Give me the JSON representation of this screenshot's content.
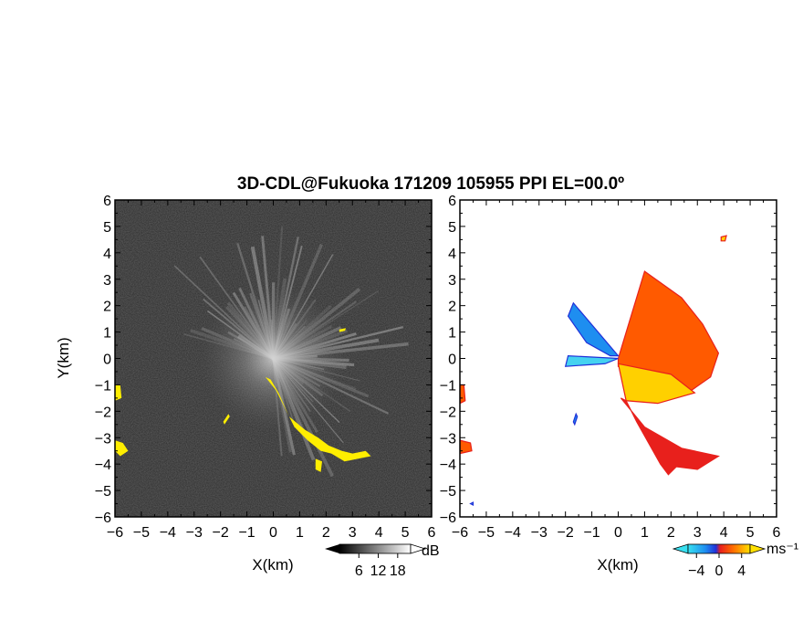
{
  "chart_data": [
    {
      "type": "heatmap",
      "panel": "left",
      "title": "3D-CDL@Fukuoka 171209 105955 PPI EL=00.0º",
      "xlabel": "X(km)",
      "ylabel": "Y(km)",
      "xlim": [
        -6,
        6
      ],
      "ylim": [
        -6,
        6
      ],
      "xticks": [
        "−6",
        "−5",
        "−4",
        "−3",
        "−2",
        "−1",
        "0",
        "1",
        "2",
        "3",
        "4",
        "5",
        "6"
      ],
      "yticks": [
        "6",
        "5",
        "4",
        "3",
        "2",
        "1",
        "0",
        "−1",
        "−2",
        "−3",
        "−4",
        "−5",
        "−6"
      ],
      "colorbar": {
        "unit": "dB",
        "ticks": [
          "6",
          "12",
          "18"
        ],
        "range": [
          0,
          22
        ]
      },
      "highlight_color": "#ffee00",
      "background_color": "#2a2a2a",
      "highlight_regions": [
        {
          "points": [
            [
              -0.3,
              -0.7
            ],
            [
              0.1,
              -1.2
            ],
            [
              0.8,
              -2.6
            ],
            [
              1.3,
              -3.1
            ],
            [
              1.8,
              -3.5
            ],
            [
              2.2,
              -3.6
            ],
            [
              2.7,
              -3.9
            ],
            [
              3.2,
              -3.8
            ],
            [
              3.7,
              -3.7
            ],
            [
              3.5,
              -3.5
            ],
            [
              3.0,
              -3.6
            ],
            [
              2.6,
              -3.5
            ],
            [
              2.1,
              -3.3
            ],
            [
              1.7,
              -3.0
            ],
            [
              1.2,
              -2.7
            ],
            [
              0.6,
              -2.2
            ],
            [
              0.2,
              -1.3
            ],
            [
              -0.1,
              -0.8
            ]
          ]
        },
        {
          "points": [
            [
              -6.0,
              -1.0
            ],
            [
              -5.8,
              -1.0
            ],
            [
              -5.75,
              -1.5
            ],
            [
              -6.0,
              -1.6
            ]
          ]
        },
        {
          "points": [
            [
              -6.0,
              -3.1
            ],
            [
              -5.7,
              -3.2
            ],
            [
              -5.5,
              -3.5
            ],
            [
              -5.8,
              -3.7
            ],
            [
              -6.0,
              -3.5
            ]
          ]
        },
        {
          "points": [
            [
              -1.9,
              -2.4
            ],
            [
              -1.7,
              -2.1
            ],
            [
              -1.65,
              -2.2
            ],
            [
              -1.85,
              -2.5
            ]
          ]
        },
        {
          "points": [
            [
              2.5,
              1.1
            ],
            [
              2.75,
              1.15
            ],
            [
              2.72,
              1.05
            ],
            [
              2.5,
              1.0
            ]
          ]
        },
        {
          "points": [
            [
              1.6,
              -3.8
            ],
            [
              1.85,
              -3.9
            ],
            [
              1.8,
              -4.3
            ],
            [
              1.6,
              -4.2
            ]
          ]
        }
      ]
    },
    {
      "type": "heatmap",
      "panel": "right",
      "xlabel": "X(km)",
      "xlim": [
        -6,
        6
      ],
      "ylim": [
        -6,
        6
      ],
      "xticks": [
        "−6",
        "−5",
        "−4",
        "−3",
        "−2",
        "−1",
        "0",
        "1",
        "2",
        "3",
        "4",
        "5",
        "6"
      ],
      "yticks": [
        "6",
        "5",
        "4",
        "3",
        "2",
        "1",
        "0",
        "−1",
        "−2",
        "−3",
        "−4",
        "−5",
        "−6"
      ],
      "colorbar": {
        "unit": "ms⁻¹",
        "ticks": [
          "−4",
          "0",
          "4"
        ],
        "range": [
          -5.5,
          5.5
        ]
      },
      "colors": {
        "approaching": "#1e8ef0",
        "near_zero": "#44d2f0",
        "receding": "#ff5a00",
        "strong_receding": "#ffd000",
        "edge_red": "#e8201c",
        "edge_blue": "#2030d8"
      },
      "velocity_regions": [
        {
          "value": 3.0,
          "points": [
            [
              0.0,
              0.0
            ],
            [
              1.0,
              3.3
            ],
            [
              2.4,
              2.3
            ],
            [
              3.2,
              1.3
            ],
            [
              3.8,
              0.2
            ],
            [
              3.5,
              -0.7
            ],
            [
              2.5,
              -1.4
            ],
            [
              0.0,
              -0.3
            ]
          ]
        },
        {
          "value": 5.0,
          "points": [
            [
              0.0,
              -0.2
            ],
            [
              2.0,
              -0.6
            ],
            [
              2.9,
              -1.3
            ],
            [
              1.5,
              -1.7
            ],
            [
              0.3,
              -1.6
            ]
          ]
        },
        {
          "value": -3.0,
          "points": [
            [
              0.0,
              0.1
            ],
            [
              -1.7,
              2.1
            ],
            [
              -1.9,
              1.6
            ],
            [
              -1.2,
              0.6
            ],
            [
              -0.3,
              0.1
            ]
          ]
        },
        {
          "value": -0.5,
          "points": [
            [
              0.0,
              0.0
            ],
            [
              -1.9,
              0.1
            ],
            [
              -2.0,
              -0.3
            ],
            [
              -0.5,
              -0.2
            ]
          ]
        },
        {
          "value": 1.5,
          "points": [
            [
              0.1,
              -1.5
            ],
            [
              1.0,
              -2.6
            ],
            [
              2.4,
              -3.4
            ],
            [
              3.8,
              -3.7
            ],
            [
              3.0,
              -4.2
            ],
            [
              2.2,
              -4.1
            ],
            [
              1.9,
              -4.4
            ],
            [
              1.6,
              -4.0
            ],
            [
              0.7,
              -2.4
            ],
            [
              0.3,
              -1.6
            ]
          ]
        },
        {
          "value": 3.5,
          "points": [
            [
              -6.0,
              -3.1
            ],
            [
              -5.6,
              -3.2
            ],
            [
              -5.55,
              -3.5
            ],
            [
              -6.0,
              -3.6
            ]
          ]
        },
        {
          "value": 3.5,
          "points": [
            [
              -6.0,
              -1.0
            ],
            [
              -5.85,
              -1.0
            ],
            [
              -5.8,
              -1.6
            ],
            [
              -6.0,
              -1.7
            ]
          ]
        },
        {
          "value": -4.0,
          "points": [
            [
              -1.7,
              -2.4
            ],
            [
              -1.6,
              -2.1
            ],
            [
              -1.55,
              -2.2
            ],
            [
              -1.65,
              -2.5
            ]
          ]
        },
        {
          "value": 5.0,
          "points": [
            [
              3.9,
              4.6
            ],
            [
              4.1,
              4.65
            ],
            [
              4.05,
              4.45
            ],
            [
              3.9,
              4.45
            ]
          ]
        },
        {
          "value": -1.0,
          "points": [
            [
              -5.6,
              -5.5
            ],
            [
              -5.5,
              -5.45
            ],
            [
              -5.5,
              -5.55
            ]
          ]
        }
      ]
    }
  ]
}
